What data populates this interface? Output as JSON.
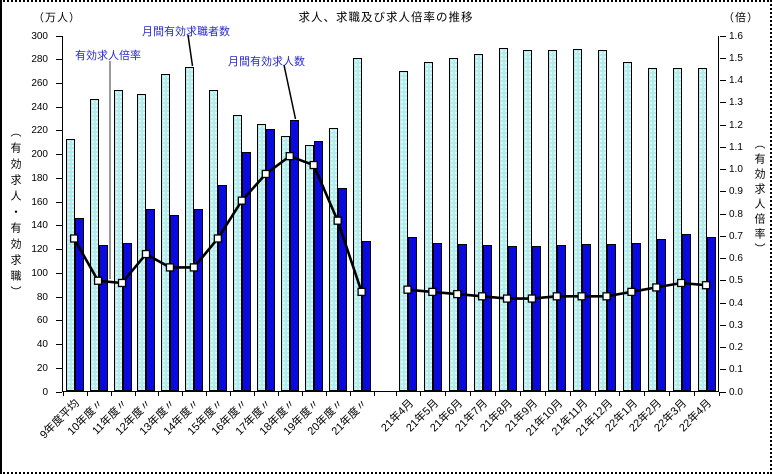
{
  "figure": {
    "title": "求人、求職及び求人倍率の推移",
    "left_unit": "（万人）",
    "right_unit": "（倍）",
    "left_axis_title": "（有効求人・有効求職）",
    "right_axis_title": "（有効求人倍率）"
  },
  "annotations": {
    "ratio_label": "有効求人倍率",
    "seekers_label": "月間有効求職者数",
    "openings_label": "月間有効求人数"
  },
  "colors": {
    "annotation_text": "#2a2acc",
    "seekers_bar_fill": "#b4ecec",
    "openings_bar_fill": "#0909e0",
    "ratio_line": "#000000",
    "marker_fill": "#ffffff"
  },
  "chart_data": {
    "type": "bar",
    "subtype": "grouped-bars-with-line",
    "title": "求人、求職及び求人倍率の推移",
    "categories": [
      "9年度平均",
      "10年度〃",
      "11年度〃",
      "12年度〃",
      "13年度〃",
      "14年度〃",
      "15年度〃",
      "16年度〃",
      "17年度〃",
      "18年度〃",
      "19年度〃",
      "20年度〃",
      "21年度〃",
      "21年4月",
      "21年5月",
      "21年6月",
      "21年7月",
      "21年8月",
      "21年9月",
      "21年10月",
      "21年11月",
      "21年12月",
      "22年1月",
      "22年2月",
      "22年3月",
      "22年4月"
    ],
    "gap_after_index": 12,
    "series": [
      {
        "name": "月間有効求職者数",
        "type": "bar",
        "axis": "left",
        "values": [
          212,
          246,
          254,
          250,
          267,
          273,
          254,
          233,
          225,
          215,
          207,
          222,
          281,
          270,
          277,
          281,
          284,
          289,
          287,
          287,
          288,
          287,
          277,
          272,
          272,
          272
        ]
      },
      {
        "name": "月間有効求人数",
        "type": "bar",
        "axis": "left",
        "values": [
          146,
          123,
          125,
          153,
          148,
          153,
          174,
          201,
          221,
          228,
          211,
          171,
          126,
          130,
          125,
          124,
          123,
          122,
          122,
          123,
          124,
          124,
          125,
          128,
          132,
          130
        ]
      },
      {
        "name": "有効求人倍率",
        "type": "line",
        "axis": "right",
        "values": [
          0.69,
          0.5,
          0.49,
          0.62,
          0.56,
          0.56,
          0.69,
          0.86,
          0.98,
          1.06,
          1.02,
          0.77,
          0.45,
          0.46,
          0.45,
          0.44,
          0.43,
          0.42,
          0.42,
          0.43,
          0.43,
          0.43,
          0.45,
          0.47,
          0.49,
          0.48
        ]
      }
    ],
    "ylim_left": [
      0,
      300
    ],
    "ylim_right": [
      0,
      1.6
    ],
    "y_left_ticks": [
      "0",
      "20",
      "40",
      "60",
      "80",
      "100",
      "120",
      "140",
      "160",
      "180",
      "200",
      "220",
      "240",
      "260",
      "280",
      "300"
    ],
    "y_right_ticks": [
      "0.0",
      "0.1",
      "0.2",
      "0.3",
      "0.4",
      "0.5",
      "0.6",
      "0.7",
      "0.8",
      "0.9",
      "1.0",
      "1.1",
      "1.2",
      "1.3",
      "1.4",
      "1.5",
      "1.6"
    ],
    "xlabel": "",
    "ylabel_left": "（有効求人・有効求職）",
    "ylabel_right": "（有効求人倍率）",
    "grid": false,
    "legend_position": "in-plot-annotations"
  }
}
